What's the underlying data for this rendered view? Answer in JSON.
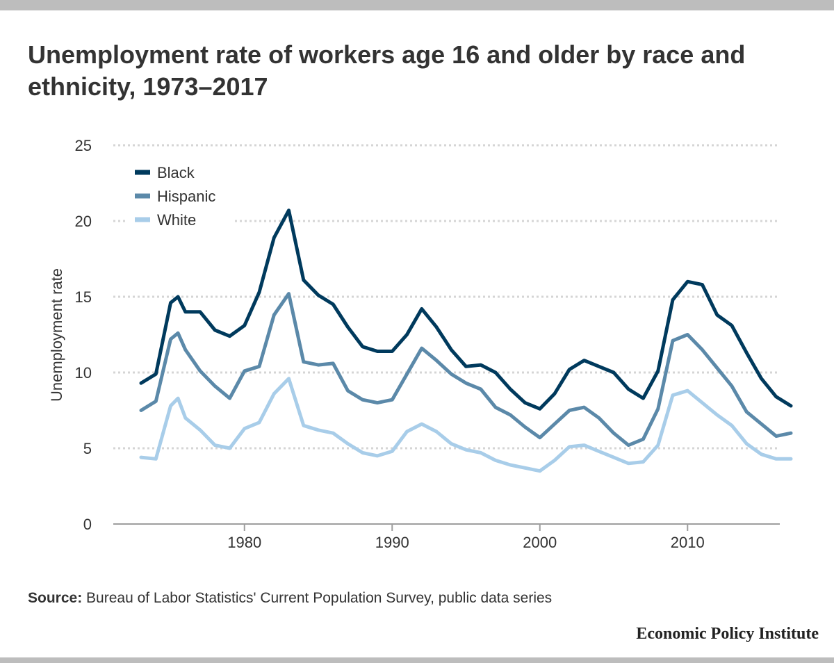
{
  "title": "Unemployment rate of workers age 16 and older by race and ethnicity, 1973–2017",
  "source": {
    "label": "Source:",
    "text": "Bureau of Labor Statistics' Current Population Survey, public data series"
  },
  "brand": "Economic Policy Institute",
  "colors": {
    "black_series": "#003a5d",
    "hispanic_series": "#5b89a9",
    "white_series": "#a8cde9",
    "grid": "#d5d5d5",
    "axis": "#9e9e9e",
    "text": "#333333",
    "frame": "#bdbdbd"
  },
  "chart_data": {
    "type": "line",
    "title": "Unemployment rate of workers age 16 and older by race and ethnicity, 1973–2017",
    "xlabel": "",
    "ylabel": "Unemployment rate",
    "xlim": [
      1973,
      2017
    ],
    "ylim": [
      0,
      25
    ],
    "x_ticks": [
      1980,
      1990,
      2000,
      2010
    ],
    "y_ticks": [
      0,
      5,
      10,
      15,
      20,
      25
    ],
    "grid": true,
    "legend_position": "top-left",
    "series": [
      {
        "name": "Black",
        "color": "#003a5d",
        "x": [
          1973,
          1974,
          1975,
          1975.5,
          1976,
          1977,
          1978,
          1979,
          1980,
          1981,
          1982,
          1983,
          1984,
          1985,
          1986,
          1987,
          1988,
          1989,
          1990,
          1991,
          1992,
          1993,
          1994,
          1995,
          1996,
          1997,
          1998,
          1999,
          2000,
          2001,
          2002,
          2003,
          2004,
          2005,
          2006,
          2007,
          2008,
          2009,
          2010,
          2011,
          2012,
          2013,
          2014,
          2015,
          2016,
          2017
        ],
        "values": [
          9.3,
          9.9,
          14.6,
          15.0,
          14.0,
          14.0,
          12.8,
          12.4,
          13.1,
          15.3,
          18.9,
          20.7,
          16.1,
          15.1,
          14.5,
          13.0,
          11.7,
          11.4,
          11.4,
          12.5,
          14.2,
          13.0,
          11.5,
          10.4,
          10.5,
          10.0,
          8.9,
          8.0,
          7.6,
          8.6,
          10.2,
          10.8,
          10.4,
          10.0,
          8.9,
          8.3,
          10.1,
          14.8,
          16.0,
          15.8,
          13.8,
          13.1,
          11.3,
          9.6,
          8.4,
          7.8
        ]
      },
      {
        "name": "Hispanic",
        "color": "#5b89a9",
        "x": [
          1973,
          1974,
          1975,
          1975.5,
          1976,
          1977,
          1978,
          1979,
          1980,
          1981,
          1982,
          1983,
          1984,
          1985,
          1986,
          1987,
          1988,
          1989,
          1990,
          1991,
          1992,
          1993,
          1994,
          1995,
          1996,
          1997,
          1998,
          1999,
          2000,
          2001,
          2002,
          2003,
          2004,
          2005,
          2006,
          2007,
          2008,
          2009,
          2010,
          2011,
          2012,
          2013,
          2014,
          2015,
          2016,
          2017
        ],
        "values": [
          7.5,
          8.1,
          12.2,
          12.6,
          11.5,
          10.1,
          9.1,
          8.3,
          10.1,
          10.4,
          13.8,
          15.2,
          10.7,
          10.5,
          10.6,
          8.8,
          8.2,
          8.0,
          8.2,
          9.9,
          11.6,
          10.8,
          9.9,
          9.3,
          8.9,
          7.7,
          7.2,
          6.4,
          5.7,
          6.6,
          7.5,
          7.7,
          7.0,
          6.0,
          5.2,
          5.6,
          7.6,
          12.1,
          12.5,
          11.5,
          10.3,
          9.1,
          7.4,
          6.6,
          5.8,
          6.0
        ]
      },
      {
        "name": "White",
        "color": "#a8cde9",
        "x": [
          1973,
          1974,
          1975,
          1975.5,
          1976,
          1977,
          1978,
          1979,
          1980,
          1981,
          1982,
          1983,
          1984,
          1985,
          1986,
          1987,
          1988,
          1989,
          1990,
          1991,
          1992,
          1993,
          1994,
          1995,
          1996,
          1997,
          1998,
          1999,
          2000,
          2001,
          2002,
          2003,
          2004,
          2005,
          2006,
          2007,
          2008,
          2009,
          2010,
          2011,
          2012,
          2013,
          2014,
          2015,
          2016,
          2017
        ],
        "values": [
          4.4,
          4.3,
          7.8,
          8.3,
          7.0,
          6.2,
          5.2,
          5.0,
          6.3,
          6.7,
          8.6,
          9.6,
          6.5,
          6.2,
          6.0,
          5.3,
          4.7,
          4.5,
          4.8,
          6.1,
          6.6,
          6.1,
          5.3,
          4.9,
          4.7,
          4.2,
          3.9,
          3.7,
          3.5,
          4.2,
          5.1,
          5.2,
          4.8,
          4.4,
          4.0,
          4.1,
          5.2,
          8.5,
          8.8,
          8.0,
          7.2,
          6.5,
          5.3,
          4.6,
          4.3,
          4.3
        ]
      }
    ]
  }
}
